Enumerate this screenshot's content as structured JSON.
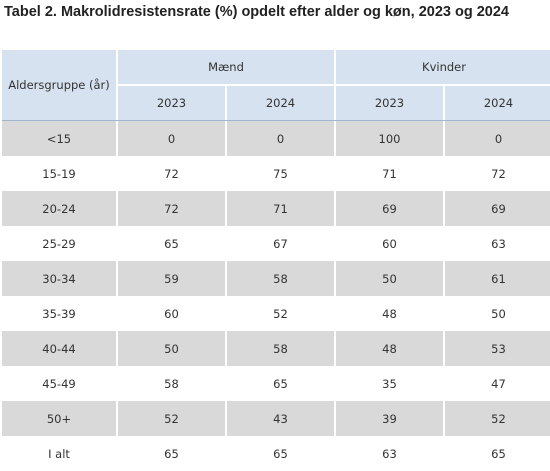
{
  "title": "Tabel 2. Makrolidresistensrate (%) opdelt efter alder og køn, 2023 og 2024",
  "header": {
    "age_group": "Aldersgruppe (år)",
    "groups": [
      "Mænd",
      "Kvinder"
    ],
    "years": [
      "2023",
      "2024",
      "2023",
      "2024"
    ]
  },
  "rows": [
    {
      "age": "<15",
      "values": [
        "0",
        "0",
        "100",
        "0"
      ]
    },
    {
      "age": "15-19",
      "values": [
        "72",
        "75",
        "71",
        "72"
      ]
    },
    {
      "age": "20-24",
      "values": [
        "72",
        "71",
        "69",
        "69"
      ]
    },
    {
      "age": "25-29",
      "values": [
        "65",
        "67",
        "60",
        "63"
      ]
    },
    {
      "age": "30-34",
      "values": [
        "59",
        "58",
        "50",
        "61"
      ]
    },
    {
      "age": "35-39",
      "values": [
        "60",
        "52",
        "48",
        "50"
      ]
    },
    {
      "age": "40-44",
      "values": [
        "50",
        "58",
        "48",
        "53"
      ]
    },
    {
      "age": "45-49",
      "values": [
        "58",
        "65",
        "35",
        "47"
      ]
    },
    {
      "age": "50+",
      "values": [
        "52",
        "43",
        "39",
        "52"
      ]
    },
    {
      "age": "I alt",
      "values": [
        "65",
        "65",
        "63",
        "65"
      ]
    }
  ]
}
